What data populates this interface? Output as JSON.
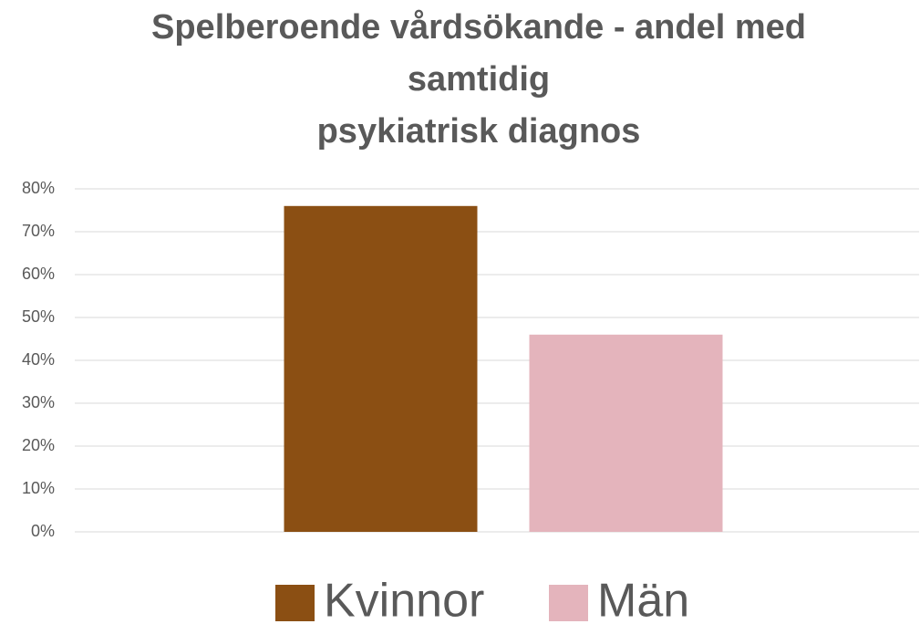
{
  "chart_data": {
    "type": "bar",
    "title": [
      "Spelberoende vårdsökande - andel med",
      "samtidig",
      "psykiatrisk diagnos"
    ],
    "categories": [
      null
    ],
    "series": [
      {
        "name": "Kvinnor",
        "color": "#8b4f13",
        "values": [
          76
        ]
      },
      {
        "name": "Män",
        "color": "#e4b4bc",
        "values": [
          46
        ]
      }
    ],
    "ylim": [
      0,
      80
    ],
    "yticks": [
      {
        "value": 0,
        "label": "0%"
      },
      {
        "value": 10,
        "label": "10%"
      },
      {
        "value": 20,
        "label": "20%"
      },
      {
        "value": 30,
        "label": "30%"
      },
      {
        "value": 40,
        "label": "40%"
      },
      {
        "value": 50,
        "label": "50%"
      },
      {
        "value": 60,
        "label": "60%"
      },
      {
        "value": 70,
        "label": "70%"
      },
      {
        "value": 80,
        "label": "80%"
      }
    ],
    "grid": true,
    "legend": "bottom"
  }
}
